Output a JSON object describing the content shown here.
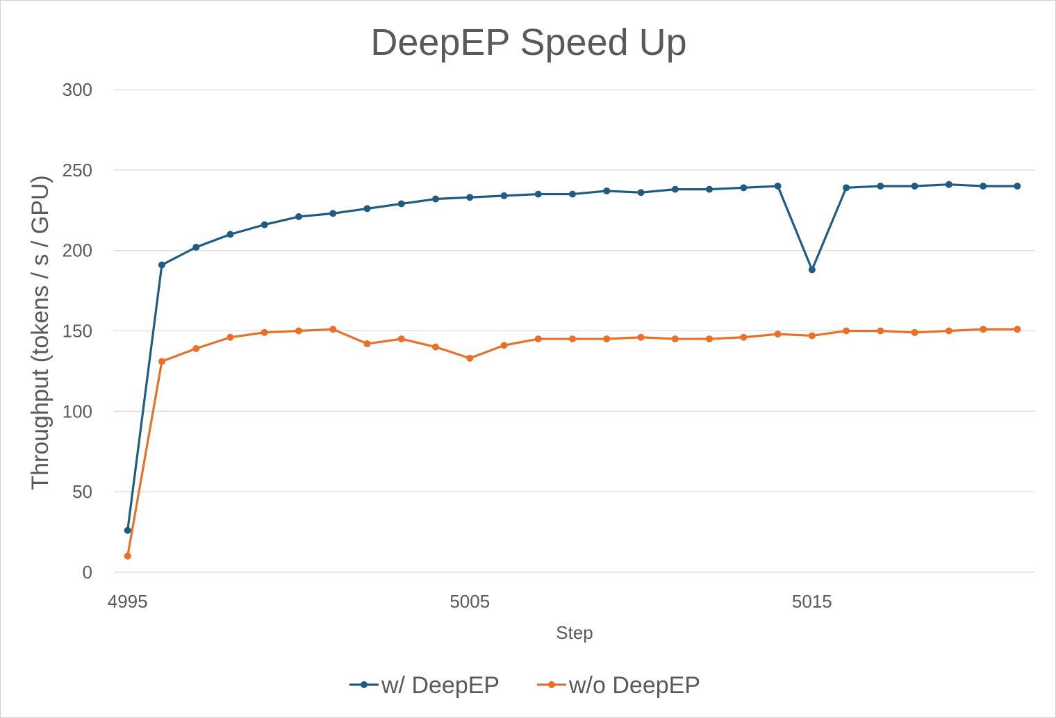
{
  "chart_data": {
    "type": "line",
    "title": "DeepEP Speed Up",
    "xlabel": "Step",
    "ylabel": "Throughput (tokens / s / GPU)",
    "x": [
      4995,
      4996,
      4997,
      4998,
      4999,
      5000,
      5001,
      5002,
      5003,
      5004,
      5005,
      5006,
      5007,
      5008,
      5009,
      5010,
      5011,
      5012,
      5013,
      5014,
      5015,
      5016,
      5017,
      5018,
      5019,
      5020,
      5021
    ],
    "x_ticks": [
      "4995",
      "5005",
      "5015"
    ],
    "x_tick_values": [
      4995,
      5005,
      5015
    ],
    "ylim": [
      0,
      300
    ],
    "y_ticks": [
      0,
      50,
      100,
      150,
      200,
      250,
      300
    ],
    "grid": "horizontal",
    "legend_position": "bottom",
    "series": [
      {
        "name": "w/ DeepEP",
        "color": "#1f5c82",
        "values": [
          26,
          191,
          202,
          210,
          216,
          221,
          223,
          226,
          229,
          232,
          233,
          234,
          235,
          235,
          237,
          236,
          238,
          238,
          239,
          240,
          188,
          239,
          240,
          240,
          241,
          240,
          240
        ]
      },
      {
        "name": "w/o DeepEP",
        "color": "#e8702a",
        "values": [
          10,
          131,
          139,
          146,
          149,
          150,
          151,
          142,
          145,
          140,
          133,
          141,
          145,
          145,
          145,
          146,
          145,
          145,
          146,
          148,
          147,
          150,
          150,
          149,
          150,
          151,
          151
        ]
      }
    ]
  }
}
